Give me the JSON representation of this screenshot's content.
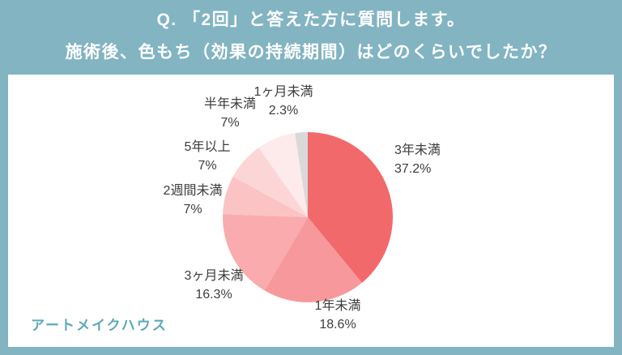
{
  "header": {
    "line1": "Q. 「2回」と答えた方に質問します。",
    "line2": "施術後、色もち（効果の持続期間）はどのくらいでしたか？"
  },
  "brand": {
    "name": "アートメイクハウス"
  },
  "colors": {
    "background": "#82b4c2",
    "card": "#ffffff",
    "header_text": "#ffffff",
    "brand_text": "#5ca9bb",
    "label_text": "#3d3d3d"
  },
  "chart_data": {
    "type": "pie",
    "title": "施術後、色もち（効果の持続期間）はどのくらいでしたか？",
    "direction": "clockwise",
    "start_angle_deg": -90,
    "legend_position": "outside-labels",
    "segments": [
      {
        "label": "3年未満",
        "value": 37.2,
        "display": "37.2%",
        "color": "#f2696c"
      },
      {
        "label": "1年未満",
        "value": 18.6,
        "display": "18.6%",
        "color": "#f7999c"
      },
      {
        "label": "3ヶ月未満",
        "value": 16.3,
        "display": "16.3%",
        "color": "#f9abad"
      },
      {
        "label": "2週間未満",
        "value": 7,
        "display": "7%",
        "color": "#fbc3c4"
      },
      {
        "label": "5年以上",
        "value": 7,
        "display": "7%",
        "color": "#fcd6d7"
      },
      {
        "label": "半年未満",
        "value": 7,
        "display": "7%",
        "color": "#fdeaea"
      },
      {
        "label": "1ヶ月未満",
        "value": 2.3,
        "display": "2.3%",
        "color": "#d9d9d9"
      }
    ]
  }
}
